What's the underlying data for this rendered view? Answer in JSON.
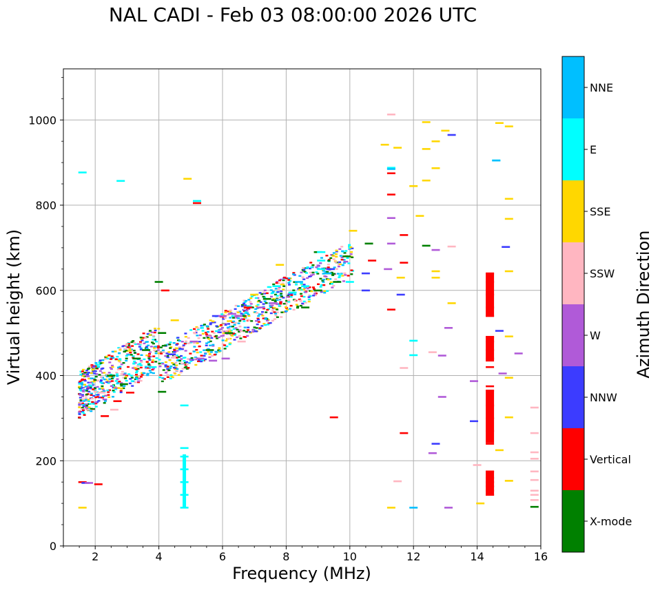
{
  "chart_data": {
    "type": "scatter",
    "title": "NAL CADI - Feb 03 08:00:00 2026 UTC",
    "xlabel": "Frequency (MHz)",
    "ylabel": "Virtual height (km)",
    "xlim": [
      1,
      16
    ],
    "ylim": [
      0,
      1120
    ],
    "xticks": [
      2,
      4,
      6,
      8,
      10,
      12,
      14,
      16
    ],
    "yticks": [
      0,
      200,
      400,
      600,
      800,
      1000
    ],
    "grid": true,
    "colorbar": {
      "label": "Azimuth Direction",
      "categories": [
        "X-mode",
        "Vertical",
        "NNW",
        "W",
        "SSW",
        "SSE",
        "E",
        "NNE"
      ],
      "colors": [
        "#008000",
        "#ff0000",
        "#3c3cff",
        "#b05ad8",
        "#ffb6c1",
        "#ffd700",
        "#00ffff",
        "#00bfff"
      ]
    },
    "series": [
      {
        "name": "X-mode",
        "points": [
          [
            3.3,
            440
          ],
          [
            3.6,
            460
          ],
          [
            4.0,
            620
          ],
          [
            4.1,
            500
          ],
          [
            4.1,
            362
          ],
          [
            5.6,
            460
          ],
          [
            6.2,
            500
          ],
          [
            6.6,
            540
          ],
          [
            7.4,
            580
          ],
          [
            8.6,
            560
          ],
          [
            9.0,
            690
          ],
          [
            9.0,
            600
          ],
          [
            9.3,
            640
          ],
          [
            9.6,
            620
          ],
          [
            9.9,
            680
          ],
          [
            10.6,
            710
          ],
          [
            12.4,
            705
          ],
          [
            15.8,
            92
          ],
          [
            2.5,
            400
          ],
          [
            2.9,
            380
          ]
        ]
      },
      {
        "name": "Vertical",
        "points": [
          [
            1.6,
            150
          ],
          [
            2.1,
            145
          ],
          [
            2.3,
            305
          ],
          [
            4.2,
            600
          ],
          [
            5.2,
            805
          ],
          [
            6.8,
            560
          ],
          [
            9.5,
            302
          ],
          [
            10.7,
            670
          ],
          [
            11.3,
            555
          ],
          [
            11.3,
            825
          ],
          [
            11.3,
            875
          ],
          [
            11.7,
            265
          ],
          [
            11.7,
            730
          ],
          [
            11.7,
            665
          ],
          [
            14.4,
            120
          ],
          [
            14.4,
            130
          ],
          [
            14.4,
            140
          ],
          [
            14.4,
            150
          ],
          [
            14.4,
            160
          ],
          [
            14.4,
            175
          ],
          [
            14.4,
            240
          ],
          [
            14.4,
            270
          ],
          [
            14.4,
            300
          ],
          [
            14.4,
            330
          ],
          [
            14.4,
            365
          ],
          [
            14.4,
            375
          ],
          [
            14.4,
            420
          ],
          [
            14.4,
            440
          ],
          [
            14.4,
            460
          ],
          [
            14.4,
            480
          ],
          [
            14.4,
            490
          ],
          [
            14.4,
            540
          ],
          [
            14.4,
            560
          ],
          [
            14.4,
            590
          ],
          [
            14.4,
            620
          ],
          [
            14.4,
            640
          ],
          [
            3.1,
            360
          ],
          [
            2.7,
            340
          ]
        ]
      },
      {
        "name": "NNW",
        "points": [
          [
            1.7,
            148
          ],
          [
            4.4,
            450
          ],
          [
            10.5,
            640
          ],
          [
            10.5,
            600
          ],
          [
            11.6,
            590
          ],
          [
            12.7,
            240
          ],
          [
            13.2,
            965
          ],
          [
            13.9,
            293
          ],
          [
            14.7,
            505
          ],
          [
            14.9,
            702
          ],
          [
            9.4,
            650
          ],
          [
            5.8,
            540
          ]
        ]
      },
      {
        "name": "W",
        "points": [
          [
            1.8,
            148
          ],
          [
            5.1,
            480
          ],
          [
            5.3,
            440
          ],
          [
            5.7,
            435
          ],
          [
            6.0,
            540
          ],
          [
            6.3,
            545
          ],
          [
            6.5,
            540
          ],
          [
            7.2,
            560
          ],
          [
            7.6,
            570
          ],
          [
            11.2,
            650
          ],
          [
            11.3,
            710
          ],
          [
            11.3,
            770
          ],
          [
            12.6,
            218
          ],
          [
            12.7,
            695
          ],
          [
            12.9,
            447
          ],
          [
            13.1,
            512
          ],
          [
            13.1,
            90
          ],
          [
            13.9,
            387
          ],
          [
            14.8,
            405
          ],
          [
            15.3,
            452
          ],
          [
            12.9,
            350
          ],
          [
            6.1,
            440
          ]
        ]
      },
      {
        "name": "SSW",
        "points": [
          [
            11.5,
            152
          ],
          [
            11.7,
            418
          ],
          [
            11.3,
            1013
          ],
          [
            12.6,
            455
          ],
          [
            13.2,
            703
          ],
          [
            14.0,
            190
          ],
          [
            15.8,
            325
          ],
          [
            15.8,
            265
          ],
          [
            15.8,
            220
          ],
          [
            15.8,
            205
          ],
          [
            15.8,
            175
          ],
          [
            15.8,
            155
          ],
          [
            15.8,
            130
          ],
          [
            15.8,
            120
          ],
          [
            15.8,
            108
          ],
          [
            6.6,
            480
          ],
          [
            2.6,
            320
          ],
          [
            2.2,
            360
          ]
        ]
      },
      {
        "name": "SSE",
        "points": [
          [
            1.6,
            90
          ],
          [
            4.9,
            862
          ],
          [
            11.1,
            942
          ],
          [
            11.3,
            90
          ],
          [
            11.5,
            935
          ],
          [
            11.6,
            630
          ],
          [
            12.0,
            845
          ],
          [
            12.2,
            775
          ],
          [
            12.4,
            995
          ],
          [
            12.4,
            932
          ],
          [
            12.4,
            858
          ],
          [
            12.7,
            950
          ],
          [
            12.7,
            887
          ],
          [
            12.7,
            645
          ],
          [
            12.7,
            630
          ],
          [
            13.0,
            975
          ],
          [
            13.2,
            570
          ],
          [
            14.1,
            100
          ],
          [
            14.7,
            225
          ],
          [
            14.7,
            993
          ],
          [
            15.0,
            985
          ],
          [
            15.0,
            815
          ],
          [
            15.0,
            768
          ],
          [
            15.0,
            645
          ],
          [
            15.0,
            492
          ],
          [
            15.0,
            395
          ],
          [
            15.0,
            302
          ],
          [
            15.0,
            153
          ],
          [
            7.0,
            590
          ],
          [
            7.8,
            660
          ],
          [
            10.1,
            740
          ],
          [
            4.5,
            530
          ]
        ]
      },
      {
        "name": "E",
        "points": [
          [
            1.6,
            877
          ],
          [
            2.8,
            857
          ],
          [
            4.8,
            90
          ],
          [
            4.8,
            120
          ],
          [
            4.8,
            150
          ],
          [
            4.8,
            180
          ],
          [
            4.8,
            210
          ],
          [
            4.8,
            230
          ],
          [
            4.8,
            330
          ],
          [
            5.2,
            810
          ],
          [
            8.2,
            595
          ],
          [
            8.6,
            610
          ],
          [
            9.1,
            650
          ],
          [
            9.1,
            670
          ],
          [
            9.1,
            690
          ],
          [
            10.0,
            620
          ],
          [
            11.3,
            888
          ],
          [
            12.0,
            448
          ],
          [
            12.0,
            482
          ],
          [
            14.6,
            905
          ],
          [
            7.7,
            610
          ],
          [
            3.8,
            420
          ]
        ]
      },
      {
        "name": "NNE",
        "points": [
          [
            11.3,
            885
          ],
          [
            12.0,
            90
          ],
          [
            14.6,
            905
          ],
          [
            8.4,
            620
          ],
          [
            9.3,
            640
          ]
        ]
      }
    ],
    "annotations": "dense ionogram trace from ~1.5 MHz at 300-430 km rising to ~10 MHz at 600-700 km; red vertical column at ~14.4 MHz spanning 120-640 km"
  }
}
